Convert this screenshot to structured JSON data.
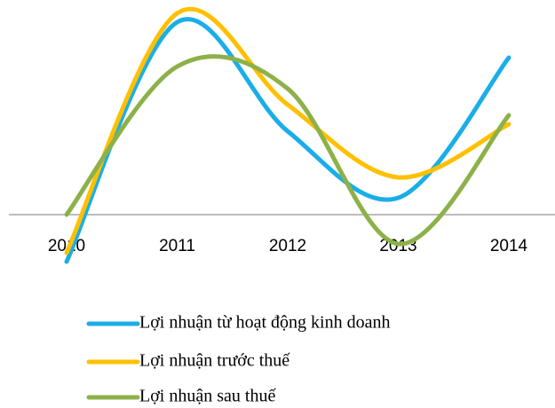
{
  "chart_data": {
    "type": "line",
    "categories": [
      "2010",
      "2011",
      "2012",
      "2013",
      "2014"
    ],
    "series": [
      {
        "name": "Lợi nhuận từ hoạt động kinh doanh",
        "color": "#1aaee8",
        "values": [
          -53,
          217,
          94,
          19,
          177
        ]
      },
      {
        "name": "Lợi nhuận trước thuế",
        "color": "#ffc000",
        "values": [
          -43,
          227,
          124,
          42,
          102
        ]
      },
      {
        "name": "Lợi nhuận sau thuế",
        "color": "#8db14a",
        "values": [
          0,
          167,
          142,
          -33,
          112
        ]
      }
    ],
    "ylim": [
      -60,
      230
    ]
  }
}
